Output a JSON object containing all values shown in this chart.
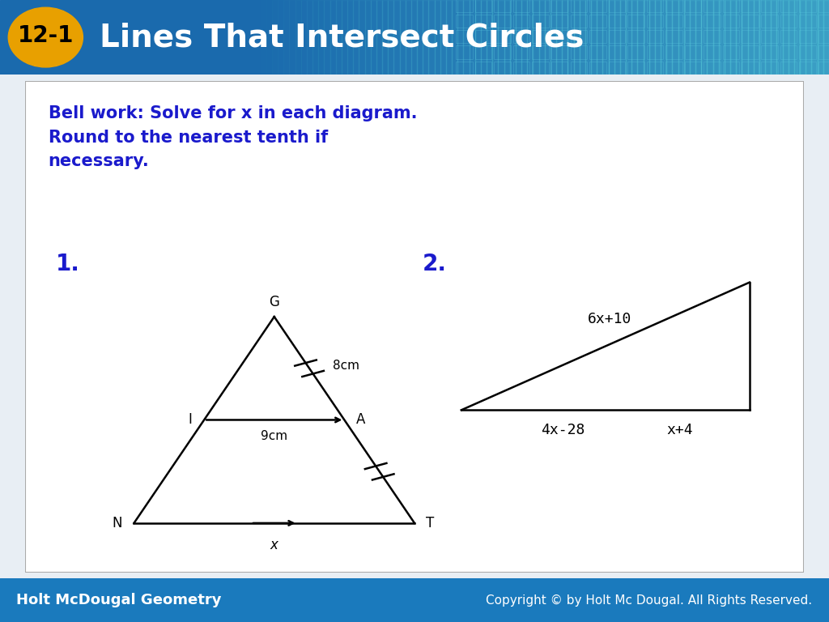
{
  "header_bg_color": "#1a6aad",
  "header_text": "Lines That Intersect Circles",
  "header_badge": "12-1",
  "badge_bg": "#e8a000",
  "footer_bg": "#1a7abd",
  "footer_left": "Holt McDougal Geometry",
  "footer_right": "Copyright © by Holt Mc Dougal. All Rights Reserved.",
  "content_bg": "#ffffff",
  "content_border": "#aaaaaa",
  "bell_work_text": "Bell work: Solve for x in each diagram.\nRound to the nearest tenth if\nnecessary.",
  "bell_work_color": "#1a1acc",
  "num1_label": "1.",
  "num2_label": "2.",
  "diagram1": {
    "label_8cm": "8cm",
    "label_9cm": "9cm",
    "label_x": "x"
  },
  "diagram2": {
    "top_label": "6x+10",
    "left_label": "4x-28",
    "right_label": "x+4"
  }
}
